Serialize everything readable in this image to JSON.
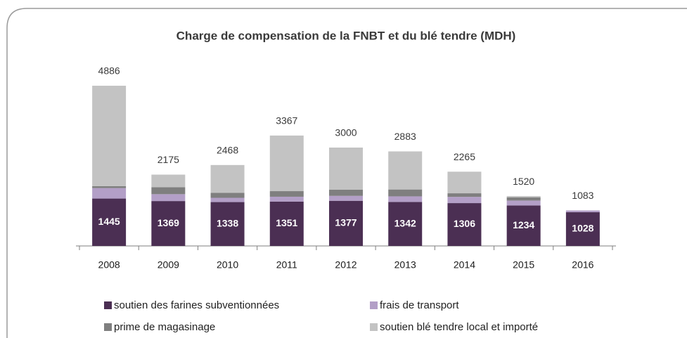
{
  "chart_data": {
    "type": "stacked_bar",
    "title": "Charge de compensation de la FNBT et du blé tendre (MDH)",
    "categories": [
      "2008",
      "2009",
      "2010",
      "2011",
      "2012",
      "2013",
      "2014",
      "2015",
      "2016"
    ],
    "series": [
      {
        "name": "soutien des farines subventionnées",
        "color": "#4b2f53",
        "values": [
          1445,
          1369,
          1338,
          1351,
          1377,
          1342,
          1306,
          1234,
          1028
        ]
      },
      {
        "name": "frais de transport",
        "color": "#b39fc7",
        "values": [
          320,
          210,
          130,
          150,
          150,
          170,
          190,
          150,
          55
        ]
      },
      {
        "name": "prime de magasinage",
        "color": "#7f7f7f",
        "values": [
          60,
          210,
          150,
          170,
          190,
          210,
          110,
          100,
          0
        ]
      },
      {
        "name": "soutien blé tendre local et importé",
        "color": "#c3c3c3",
        "values": [
          3061,
          386,
          850,
          1696,
          1283,
          1161,
          659,
          36,
          0
        ]
      }
    ],
    "totals": [
      4886,
      2175,
      2468,
      3367,
      3000,
      2883,
      2265,
      1520,
      1083
    ],
    "legend": "bottom"
  }
}
